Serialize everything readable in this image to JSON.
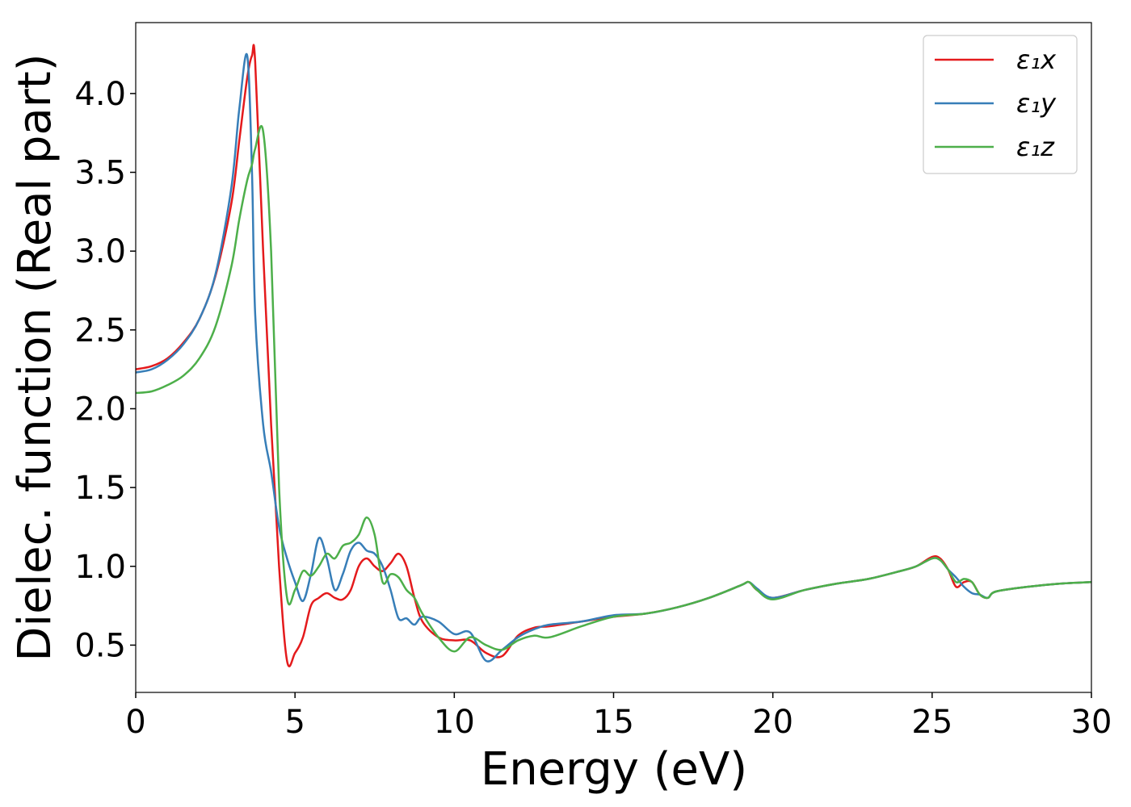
{
  "chart_data": {
    "type": "line",
    "xlabel": "Energy (eV)",
    "ylabel": "Dielec. function (Real part)",
    "xlim": [
      0,
      30
    ],
    "ylim": [
      0.2,
      4.45
    ],
    "xticks": [
      0,
      5,
      10,
      15,
      20,
      25,
      30
    ],
    "yticks": [
      0.5,
      {
        "value": 1,
        "label": "1.0"
      },
      1.5,
      {
        "value": 2,
        "label": "2.0"
      },
      2.5,
      {
        "value": 3,
        "label": "3.0"
      },
      3.5,
      {
        "value": 4,
        "label": "4.0"
      }
    ],
    "grid": false,
    "legend": "upper right",
    "x": [
      0,
      0.5,
      1,
      1.5,
      2,
      2.5,
      3,
      3.25,
      3.5,
      3.65,
      3.75,
      4,
      4.25,
      4.5,
      4.75,
      5,
      5.25,
      5.5,
      5.75,
      6,
      6.25,
      6.5,
      6.75,
      7,
      7.25,
      7.5,
      7.75,
      8,
      8.25,
      8.5,
      8.75,
      9,
      9.5,
      10,
      10.5,
      11,
      11.5,
      12,
      12.5,
      13,
      14,
      15,
      16,
      17,
      18,
      19,
      19.25,
      19.5,
      20,
      21,
      22,
      23,
      24,
      24.5,
      25,
      25.25,
      25.5,
      25.75,
      26,
      26.25,
      26.5,
      26.75,
      27,
      28,
      29,
      30
    ],
    "series": [
      {
        "name": "ε₁x",
        "color": "#e41a1c",
        "values": [
          2.25,
          2.27,
          2.32,
          2.42,
          2.57,
          2.84,
          3.3,
          3.7,
          4.1,
          4.24,
          4.2,
          3.0,
          1.9,
          1.0,
          0.4,
          0.45,
          0.55,
          0.75,
          0.8,
          0.83,
          0.8,
          0.79,
          0.85,
          1.0,
          1.05,
          1.0,
          0.97,
          1.02,
          1.08,
          1.0,
          0.8,
          0.65,
          0.55,
          0.53,
          0.53,
          0.45,
          0.43,
          0.56,
          0.61,
          0.62,
          0.65,
          0.68,
          0.7,
          0.74,
          0.8,
          0.88,
          0.9,
          0.85,
          0.8,
          0.85,
          0.89,
          0.92,
          0.97,
          1.0,
          1.06,
          1.05,
          0.98,
          0.87,
          0.9,
          0.9,
          0.82,
          0.8,
          0.84,
          0.87,
          0.89,
          0.9
        ]
      },
      {
        "name": "ε₁y",
        "color": "#377eb8",
        "values": [
          2.23,
          2.25,
          2.31,
          2.41,
          2.57,
          2.85,
          3.4,
          3.9,
          4.24,
          3.5,
          2.6,
          1.9,
          1.6,
          1.25,
          1.05,
          0.9,
          0.78,
          0.95,
          1.18,
          1.05,
          0.85,
          0.95,
          1.1,
          1.15,
          1.1,
          1.08,
          1.0,
          0.85,
          0.67,
          0.67,
          0.63,
          0.68,
          0.65,
          0.57,
          0.58,
          0.4,
          0.47,
          0.55,
          0.6,
          0.63,
          0.65,
          0.69,
          0.7,
          0.74,
          0.8,
          0.88,
          0.9,
          0.86,
          0.8,
          0.85,
          0.89,
          0.92,
          0.97,
          1.0,
          1.05,
          1.04,
          0.98,
          0.93,
          0.87,
          0.83,
          0.82,
          0.8,
          0.84,
          0.87,
          0.89,
          0.9
        ]
      },
      {
        "name": "ε₁z",
        "color": "#4daf4a",
        "values": [
          2.1,
          2.11,
          2.15,
          2.21,
          2.32,
          2.52,
          2.9,
          3.2,
          3.45,
          3.55,
          3.65,
          3.76,
          3.0,
          1.5,
          0.8,
          0.85,
          0.97,
          0.94,
          1.0,
          1.08,
          1.05,
          1.13,
          1.15,
          1.2,
          1.31,
          1.2,
          0.9,
          0.95,
          0.93,
          0.85,
          0.8,
          0.7,
          0.55,
          0.46,
          0.55,
          0.5,
          0.47,
          0.53,
          0.56,
          0.55,
          0.62,
          0.68,
          0.7,
          0.74,
          0.8,
          0.88,
          0.9,
          0.85,
          0.79,
          0.85,
          0.89,
          0.92,
          0.97,
          1.0,
          1.05,
          1.04,
          0.98,
          0.9,
          0.92,
          0.9,
          0.82,
          0.8,
          0.84,
          0.87,
          0.89,
          0.9
        ]
      }
    ]
  }
}
